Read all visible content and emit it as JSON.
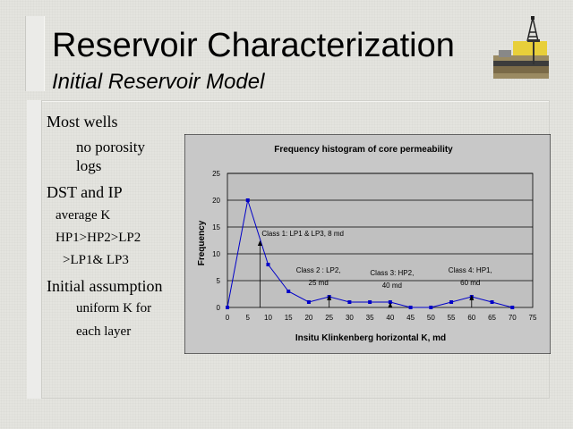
{
  "slide": {
    "title": "Reservoir Characterization",
    "subtitle": "Initial Reservoir Model",
    "bullets": [
      {
        "text": "Most wells",
        "level": 1
      },
      {
        "text": "no porosity",
        "level": 2
      },
      {
        "text": "logs",
        "level": 2
      },
      {
        "text": "DST and IP",
        "level": 1
      },
      {
        "text": "average K",
        "level": 3
      },
      {
        "text": "HP1>HP2>LP2",
        "level": 3
      },
      {
        "text": ">LP1& LP3",
        "level": 3
      },
      {
        "text": "Initial assumption",
        "level": 1
      },
      {
        "text": "uniform K for",
        "level": 3
      },
      {
        "text": "each layer",
        "level": 3
      }
    ]
  },
  "logo_icon": "oil-derrick-logo-icon",
  "colors": {
    "series": "#0000c8",
    "plot_bg": "#c0c0c0",
    "chart_bg": "#c8c8c8",
    "grid": "#000000"
  },
  "chart_data": {
    "type": "line",
    "title": "Frequency histogram of core permeability",
    "xlabel": "Insitu Klinkenberg horizontal K, md",
    "ylabel": "Frequency",
    "x": [
      0,
      5,
      10,
      15,
      20,
      25,
      30,
      35,
      40,
      45,
      50,
      55,
      60,
      65,
      70
    ],
    "y": [
      0,
      20,
      8,
      3,
      1,
      2,
      1,
      1,
      1,
      0,
      0,
      1,
      2,
      1,
      0
    ],
    "xlim": [
      0,
      75
    ],
    "ylim": [
      0,
      25
    ],
    "xticks": [
      "0",
      "5",
      "10",
      "15",
      "20",
      "25",
      "30",
      "35",
      "40",
      "45",
      "50",
      "55",
      "60",
      "65",
      "70",
      "75"
    ],
    "yticks": [
      "0",
      "5",
      "10",
      "15",
      "20",
      "25"
    ],
    "grid": "horizontal",
    "annotations": [
      {
        "lines": [
          "Class 1: LP1  & LP3, 8 md"
        ],
        "x": 8
      },
      {
        "lines": [
          "Class 2 : LP2,",
          "25 md"
        ],
        "x": 25
      },
      {
        "lines": [
          "Class 3: HP2,",
          "40 md"
        ],
        "x": 40
      },
      {
        "lines": [
          "Class 4: HP1,",
          "60 md"
        ],
        "x": 60
      }
    ]
  }
}
